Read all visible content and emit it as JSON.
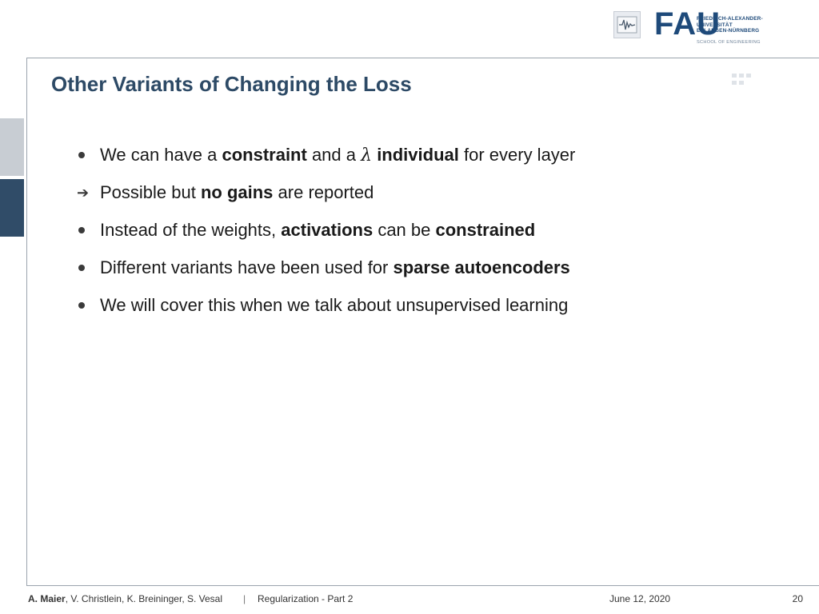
{
  "header": {
    "logo_word": "FAU",
    "logo_lines": [
      "FRIEDRICH-ALEXANDER-",
      "UNIVERSITÄT",
      "ERLANGEN-NÜRNBERG"
    ],
    "logo_school": "SCHOOL OF ENGINEERING",
    "institute_icon": "waveform-icon"
  },
  "slide": {
    "title": "Other Variants of Changing the Loss",
    "bullets": [
      {
        "marker": "dot",
        "parts": [
          {
            "t": "We can have a ",
            "s": "n"
          },
          {
            "t": "constraint",
            "s": "b"
          },
          {
            "t": " and a ",
            "s": "n"
          },
          {
            "t": "λ",
            "s": "m"
          },
          {
            "t": " ",
            "s": "n"
          },
          {
            "t": "individual",
            "s": "b"
          },
          {
            "t": " for every layer",
            "s": "n"
          }
        ]
      },
      {
        "marker": "arrow",
        "parts": [
          {
            "t": "Possible but ",
            "s": "n"
          },
          {
            "t": "no gains",
            "s": "b"
          },
          {
            "t": " are reported",
            "s": "n"
          }
        ]
      },
      {
        "marker": "dot",
        "parts": [
          {
            "t": "Instead of the weights, ",
            "s": "n"
          },
          {
            "t": "activations",
            "s": "b"
          },
          {
            "t": " can be ",
            "s": "n"
          },
          {
            "t": "constrained",
            "s": "b"
          }
        ]
      },
      {
        "marker": "dot",
        "parts": [
          {
            "t": "Different variants have been used for ",
            "s": "n"
          },
          {
            "t": "sparse autoencoders",
            "s": "b"
          }
        ]
      },
      {
        "marker": "dot",
        "parts": [
          {
            "t": "We will cover this when we talk about unsupervised learning",
            "s": "n"
          }
        ]
      }
    ]
  },
  "footer": {
    "author_main": "A. Maier",
    "authors_rest": ", V. Christlein, K. Breininger, S. Vesal",
    "separator": "|",
    "course": "Regularization - Part 2",
    "date": "June 12, 2020",
    "page_number": "20"
  },
  "colors": {
    "title": "#2d4a66",
    "fau_blue": "#1e4a7a",
    "side_tab_dark": "#304c68",
    "side_tab_light": "#c8cdd3"
  }
}
